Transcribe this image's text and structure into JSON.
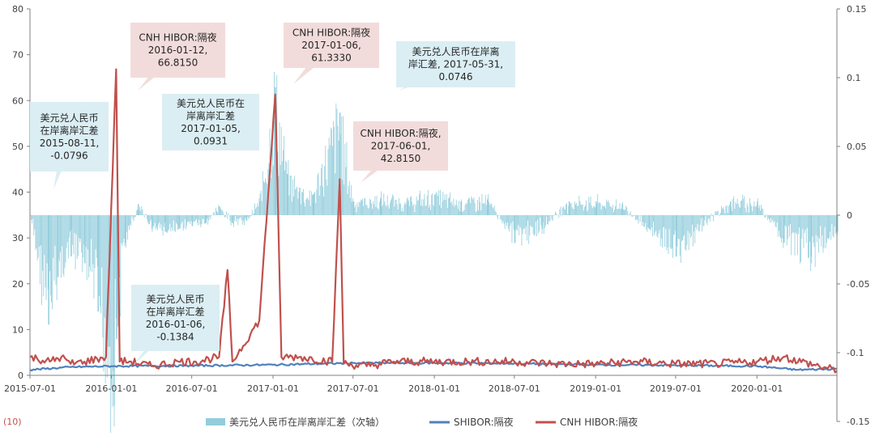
{
  "chart_data": {
    "type": "bar+line",
    "x_ticks": [
      "2015-07-01",
      "2016-01-01",
      "2016-07-01",
      "2017-01-01",
      "2017-07-01",
      "2018-01-01",
      "2018-07-01",
      "2019-01-01",
      "2019-07-01",
      "2020-01-01"
    ],
    "x_range": [
      "2015-07-01",
      "2020-06-30"
    ],
    "y_left": {
      "range": [
        0,
        80
      ],
      "ticks": [
        "0",
        "10",
        "20",
        "30",
        "40",
        "50",
        "60",
        "70",
        "80"
      ]
    },
    "y_right": {
      "range": [
        -0.15,
        0.15
      ],
      "ticks": [
        "0.15",
        "0.1",
        "0.05",
        "0",
        "-0.05",
        "-0.1",
        "-0.15"
      ]
    },
    "secondary_bottom_label": "(10)",
    "grid": false,
    "legend_position": "bottom",
    "series": [
      {
        "name": "美元兑人民币在岸离岸汇差（次轴）",
        "type": "bar",
        "axis": "right",
        "color": "#92cddc",
        "points": [
          [
            "2015-07-01",
            0.0
          ],
          [
            "2015-08-11",
            -0.0796
          ],
          [
            "2015-09-01",
            -0.045
          ],
          [
            "2015-10-01",
            -0.03
          ],
          [
            "2015-11-01",
            -0.035
          ],
          [
            "2015-12-01",
            -0.07
          ],
          [
            "2016-01-06",
            -0.1384
          ],
          [
            "2016-01-12",
            -0.09
          ],
          [
            "2016-02-01",
            -0.02
          ],
          [
            "2016-03-01",
            0.008
          ],
          [
            "2016-04-01",
            -0.01
          ],
          [
            "2016-05-01",
            -0.012
          ],
          [
            "2016-06-01",
            -0.01
          ],
          [
            "2016-07-01",
            -0.008
          ],
          [
            "2016-08-01",
            -0.006
          ],
          [
            "2016-09-01",
            0.006
          ],
          [
            "2016-10-01",
            -0.006
          ],
          [
            "2016-11-01",
            -0.004
          ],
          [
            "2016-12-01",
            0.01
          ],
          [
            "2017-01-05",
            0.0931
          ],
          [
            "2017-02-01",
            0.03
          ],
          [
            "2017-03-01",
            0.02
          ],
          [
            "2017-04-01",
            0.015
          ],
          [
            "2017-05-31",
            0.0746
          ],
          [
            "2017-07-01",
            0.01
          ],
          [
            "2017-09-01",
            0.012
          ],
          [
            "2017-11-01",
            0.01
          ],
          [
            "2018-01-01",
            0.015
          ],
          [
            "2018-03-01",
            0.01
          ],
          [
            "2018-05-01",
            0.012
          ],
          [
            "2018-07-01",
            -0.02
          ],
          [
            "2018-09-01",
            -0.01
          ],
          [
            "2018-11-01",
            0.01
          ],
          [
            "2019-01-01",
            0.01
          ],
          [
            "2019-03-01",
            0.008
          ],
          [
            "2019-05-01",
            -0.01
          ],
          [
            "2019-07-01",
            -0.03
          ],
          [
            "2019-09-01",
            -0.008
          ],
          [
            "2019-11-01",
            0.01
          ],
          [
            "2020-01-01",
            0.01
          ],
          [
            "2020-03-01",
            -0.02
          ],
          [
            "2020-05-01",
            -0.03
          ],
          [
            "2020-06-30",
            -0.012
          ]
        ]
      },
      {
        "name": "SHIBOR:隔夜",
        "type": "line",
        "axis": "left",
        "color": "#4f81bd",
        "points": [
          [
            "2015-07-01",
            1.2
          ],
          [
            "2015-10-01",
            1.8
          ],
          [
            "2016-01-01",
            2.0
          ],
          [
            "2016-07-01",
            2.1
          ],
          [
            "2017-01-01",
            2.3
          ],
          [
            "2017-07-01",
            2.7
          ],
          [
            "2018-01-01",
            2.7
          ],
          [
            "2018-07-01",
            2.6
          ],
          [
            "2019-01-01",
            2.3
          ],
          [
            "2019-07-01",
            2.2
          ],
          [
            "2020-01-01",
            2.0
          ],
          [
            "2020-04-01",
            1.2
          ],
          [
            "2020-06-30",
            1.4
          ]
        ]
      },
      {
        "name": "CNH HIBOR:隔夜",
        "type": "line",
        "axis": "left",
        "color": "#c0504d",
        "points": [
          [
            "2015-07-01",
            4.0
          ],
          [
            "2015-08-15",
            3.0
          ],
          [
            "2015-09-10",
            4.0
          ],
          [
            "2015-10-01",
            2.5
          ],
          [
            "2015-11-01",
            3.0
          ],
          [
            "2015-12-20",
            4.0
          ],
          [
            "2016-01-12",
            66.815
          ],
          [
            "2016-01-20",
            3.0
          ],
          [
            "2016-02-15",
            3.0
          ],
          [
            "2016-04-01",
            2.0
          ],
          [
            "2016-06-01",
            3.0
          ],
          [
            "2016-07-10",
            3.0
          ],
          [
            "2016-09-01",
            4.0
          ],
          [
            "2016-09-20",
            23.0
          ],
          [
            "2016-10-01",
            3.0
          ],
          [
            "2016-12-01",
            12.0
          ],
          [
            "2017-01-06",
            61.333
          ],
          [
            "2017-01-20",
            4.0
          ],
          [
            "2017-03-01",
            4.0
          ],
          [
            "2017-05-15",
            3.0
          ],
          [
            "2017-06-01",
            42.815
          ],
          [
            "2017-06-10",
            2.5
          ],
          [
            "2017-08-01",
            2.0
          ],
          [
            "2017-10-01",
            3.0
          ],
          [
            "2018-01-01",
            3.0
          ],
          [
            "2018-04-01",
            3.0
          ],
          [
            "2018-07-01",
            3.0
          ],
          [
            "2018-10-01",
            2.5
          ],
          [
            "2019-01-01",
            2.5
          ],
          [
            "2019-04-01",
            3.0
          ],
          [
            "2019-07-01",
            2.5
          ],
          [
            "2019-10-01",
            2.5
          ],
          [
            "2020-01-01",
            3.0
          ],
          [
            "2020-03-01",
            4.0
          ],
          [
            "2020-06-30",
            1.0
          ]
        ]
      }
    ],
    "annotations": [
      {
        "kind": "bar",
        "lines": [
          "美元兑人民币",
          "在岸离岸汇差",
          "2015-08-11,",
          "-0.0796"
        ],
        "date": "2015-08-11",
        "value": -0.0796
      },
      {
        "kind": "hibor",
        "lines": [
          "CNH HIBOR:隔夜",
          "2016-01-12,",
          "66.8150"
        ],
        "date": "2016-01-12",
        "value": 66.815
      },
      {
        "kind": "bar",
        "lines": [
          "美元兑人民币",
          "在岸离岸汇差",
          "2016-01-06,",
          "-0.1384"
        ],
        "date": "2016-01-06",
        "value": -0.1384
      },
      {
        "kind": "bar",
        "lines": [
          "美元兑人民币在",
          "岸离岸汇差",
          "2017-01-05,",
          "0.0931"
        ],
        "date": "2017-01-05",
        "value": 0.0931
      },
      {
        "kind": "hibor",
        "lines": [
          "CNH HIBOR:隔夜",
          "2017-01-06,",
          "61.3330"
        ],
        "date": "2017-01-06",
        "value": 61.333
      },
      {
        "kind": "bar",
        "lines": [
          "美元兑人民币在岸离",
          "岸汇差, 2017-05-31,",
          "0.0746"
        ],
        "date": "2017-05-31",
        "value": 0.0746
      },
      {
        "kind": "hibor",
        "lines": [
          "CNH HIBOR:隔夜,",
          "2017-06-01,",
          "42.8150"
        ],
        "date": "2017-06-01",
        "value": 42.815
      }
    ]
  }
}
